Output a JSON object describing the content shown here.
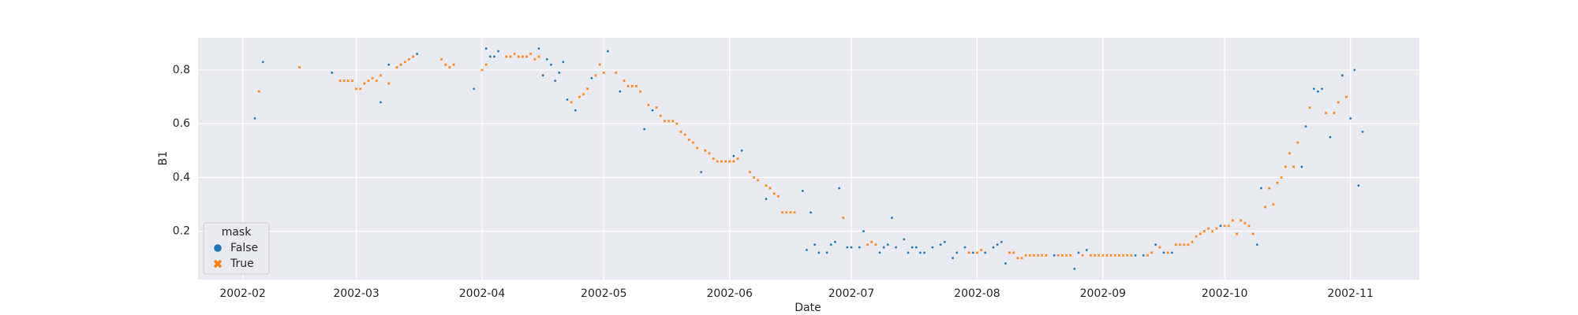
{
  "chart_data": {
    "type": "scatter",
    "x_label": "Date",
    "y_label": "B1",
    "xlim": [
      "2002-01-21",
      "2002-11-18"
    ],
    "xticks": [
      "2002-02",
      "2002-03",
      "2002-04",
      "2002-05",
      "2002-06",
      "2002-07",
      "2002-08",
      "2002-09",
      "2002-10",
      "2002-11"
    ],
    "ylim": [
      0.02,
      0.92
    ],
    "yticks": [
      0.2,
      0.4,
      0.6,
      0.8
    ],
    "grid": true,
    "legend_title": "mask",
    "legend_loc": "lower left",
    "series": [
      {
        "name": "False",
        "color": "#1f77b4",
        "marker": "circle",
        "x": [
          "2002-02-04",
          "2002-02-06",
          "2002-02-23",
          "2002-03-07",
          "2002-03-09",
          "2002-03-16",
          "2002-03-30",
          "2002-04-02",
          "2002-04-03",
          "2002-04-04",
          "2002-04-05",
          "2002-04-15",
          "2002-04-16",
          "2002-04-17",
          "2002-04-18",
          "2002-04-19",
          "2002-04-20",
          "2002-04-21",
          "2002-04-22",
          "2002-04-24",
          "2002-04-28",
          "2002-05-02",
          "2002-05-05",
          "2002-05-11",
          "2002-05-13",
          "2002-05-25",
          "2002-06-02",
          "2002-06-04",
          "2002-06-10",
          "2002-06-19",
          "2002-06-20",
          "2002-06-21",
          "2002-06-22",
          "2002-06-23",
          "2002-06-25",
          "2002-06-26",
          "2002-06-27",
          "2002-06-28",
          "2002-06-30",
          "2002-07-01",
          "2002-07-03",
          "2002-07-04",
          "2002-07-08",
          "2002-07-09",
          "2002-07-10",
          "2002-07-11",
          "2002-07-12",
          "2002-07-14",
          "2002-07-15",
          "2002-07-16",
          "2002-07-17",
          "2002-07-18",
          "2002-07-19",
          "2002-07-21",
          "2002-07-23",
          "2002-07-24",
          "2002-07-26",
          "2002-07-27",
          "2002-07-29",
          "2002-07-31",
          "2002-08-03",
          "2002-08-05",
          "2002-08-06",
          "2002-08-07",
          "2002-08-08",
          "2002-08-20",
          "2002-08-25",
          "2002-08-26",
          "2002-08-28",
          "2002-09-09",
          "2002-09-11",
          "2002-09-14",
          "2002-09-16",
          "2002-09-18",
          "2002-09-30",
          "2002-10-09",
          "2002-10-10",
          "2002-10-20",
          "2002-10-21",
          "2002-10-23",
          "2002-10-24",
          "2002-10-25",
          "2002-10-27",
          "2002-10-30",
          "2002-11-01",
          "2002-11-02",
          "2002-11-03",
          "2002-11-04"
        ],
        "values": [
          0.62,
          0.83,
          0.79,
          0.68,
          0.82,
          0.86,
          0.73,
          0.88,
          0.85,
          0.85,
          0.87,
          0.88,
          0.78,
          0.84,
          0.82,
          0.76,
          0.79,
          0.83,
          0.69,
          0.65,
          0.77,
          0.87,
          0.72,
          0.58,
          0.65,
          0.42,
          0.48,
          0.5,
          0.32,
          0.35,
          0.13,
          0.27,
          0.15,
          0.12,
          0.12,
          0.15,
          0.16,
          0.36,
          0.14,
          0.14,
          0.14,
          0.2,
          0.12,
          0.14,
          0.15,
          0.25,
          0.14,
          0.17,
          0.12,
          0.14,
          0.14,
          0.12,
          0.12,
          0.14,
          0.15,
          0.16,
          0.1,
          0.12,
          0.14,
          0.12,
          0.12,
          0.14,
          0.15,
          0.16,
          0.08,
          0.11,
          0.06,
          0.12,
          0.13,
          0.11,
          0.11,
          0.15,
          0.12,
          0.12,
          0.22,
          0.15,
          0.36,
          0.44,
          0.59,
          0.73,
          0.72,
          0.73,
          0.55,
          0.78,
          0.62,
          0.8,
          0.37,
          0.57
        ]
      },
      {
        "name": "True",
        "color": "#ff7f0e",
        "marker": "x",
        "x": [
          "2002-02-05",
          "2002-02-15",
          "2002-02-25",
          "2002-02-26",
          "2002-02-27",
          "2002-02-28",
          "2002-03-01",
          "2002-03-02",
          "2002-03-03",
          "2002-03-04",
          "2002-03-05",
          "2002-03-06",
          "2002-03-07",
          "2002-03-09",
          "2002-03-11",
          "2002-03-12",
          "2002-03-13",
          "2002-03-14",
          "2002-03-15",
          "2002-03-22",
          "2002-03-23",
          "2002-03-24",
          "2002-03-25",
          "2002-04-01",
          "2002-04-02",
          "2002-04-07",
          "2002-04-08",
          "2002-04-09",
          "2002-04-10",
          "2002-04-11",
          "2002-04-12",
          "2002-04-13",
          "2002-04-14",
          "2002-04-15",
          "2002-04-23",
          "2002-04-25",
          "2002-04-26",
          "2002-04-27",
          "2002-04-29",
          "2002-04-30",
          "2002-05-01",
          "2002-05-04",
          "2002-05-06",
          "2002-05-07",
          "2002-05-08",
          "2002-05-09",
          "2002-05-10",
          "2002-05-12",
          "2002-05-14",
          "2002-05-15",
          "2002-05-16",
          "2002-05-17",
          "2002-05-18",
          "2002-05-19",
          "2002-05-20",
          "2002-05-21",
          "2002-05-22",
          "2002-05-23",
          "2002-05-24",
          "2002-05-26",
          "2002-05-27",
          "2002-05-28",
          "2002-05-29",
          "2002-05-30",
          "2002-05-31",
          "2002-06-01",
          "2002-06-02",
          "2002-06-03",
          "2002-06-06",
          "2002-06-07",
          "2002-06-08",
          "2002-06-10",
          "2002-06-11",
          "2002-06-12",
          "2002-06-13",
          "2002-06-14",
          "2002-06-15",
          "2002-06-16",
          "2002-06-17",
          "2002-06-29",
          "2002-07-05",
          "2002-07-06",
          "2002-07-07",
          "2002-07-30",
          "2002-08-01",
          "2002-08-02",
          "2002-08-09",
          "2002-08-10",
          "2002-08-11",
          "2002-08-12",
          "2002-08-13",
          "2002-08-14",
          "2002-08-15",
          "2002-08-16",
          "2002-08-17",
          "2002-08-18",
          "2002-08-21",
          "2002-08-22",
          "2002-08-23",
          "2002-08-24",
          "2002-08-27",
          "2002-08-29",
          "2002-08-30",
          "2002-08-31",
          "2002-09-01",
          "2002-09-02",
          "2002-09-03",
          "2002-09-04",
          "2002-09-05",
          "2002-09-06",
          "2002-09-07",
          "2002-09-08",
          "2002-09-12",
          "2002-09-13",
          "2002-09-15",
          "2002-09-17",
          "2002-09-19",
          "2002-09-20",
          "2002-09-21",
          "2002-09-22",
          "2002-09-23",
          "2002-09-24",
          "2002-09-25",
          "2002-09-26",
          "2002-09-27",
          "2002-09-28",
          "2002-09-29",
          "2002-10-01",
          "2002-10-02",
          "2002-10-03",
          "2002-10-04",
          "2002-10-05",
          "2002-10-06",
          "2002-10-07",
          "2002-10-08",
          "2002-10-11",
          "2002-10-12",
          "2002-10-13",
          "2002-10-14",
          "2002-10-15",
          "2002-10-16",
          "2002-10-17",
          "2002-10-18",
          "2002-10-19",
          "2002-10-22",
          "2002-10-26",
          "2002-10-28",
          "2002-10-29",
          "2002-10-31"
        ],
        "values": [
          0.72,
          0.81,
          0.76,
          0.76,
          0.76,
          0.76,
          0.73,
          0.73,
          0.75,
          0.76,
          0.77,
          0.76,
          0.78,
          0.75,
          0.81,
          0.82,
          0.83,
          0.84,
          0.85,
          0.84,
          0.82,
          0.81,
          0.82,
          0.8,
          0.82,
          0.85,
          0.85,
          0.86,
          0.85,
          0.85,
          0.85,
          0.86,
          0.84,
          0.85,
          0.68,
          0.7,
          0.71,
          0.73,
          0.78,
          0.82,
          0.79,
          0.79,
          0.76,
          0.74,
          0.74,
          0.74,
          0.72,
          0.67,
          0.66,
          0.63,
          0.61,
          0.61,
          0.61,
          0.6,
          0.57,
          0.56,
          0.54,
          0.53,
          0.51,
          0.5,
          0.49,
          0.47,
          0.46,
          0.46,
          0.46,
          0.46,
          0.46,
          0.47,
          0.42,
          0.4,
          0.39,
          0.37,
          0.36,
          0.34,
          0.33,
          0.27,
          0.27,
          0.27,
          0.27,
          0.25,
          0.15,
          0.16,
          0.15,
          0.12,
          0.12,
          0.13,
          0.12,
          0.12,
          0.1,
          0.1,
          0.11,
          0.11,
          0.11,
          0.11,
          0.11,
          0.11,
          0.11,
          0.11,
          0.11,
          0.11,
          0.11,
          0.11,
          0.11,
          0.11,
          0.11,
          0.11,
          0.11,
          0.11,
          0.11,
          0.11,
          0.11,
          0.11,
          0.11,
          0.12,
          0.14,
          0.12,
          0.15,
          0.15,
          0.15,
          0.15,
          0.16,
          0.18,
          0.19,
          0.2,
          0.21,
          0.2,
          0.21,
          0.22,
          0.22,
          0.24,
          0.19,
          0.24,
          0.23,
          0.22,
          0.19,
          0.29,
          0.36,
          0.3,
          0.38,
          0.4,
          0.44,
          0.49,
          0.44,
          0.53,
          0.66,
          0.64,
          0.64,
          0.68,
          0.7
        ]
      }
    ]
  }
}
